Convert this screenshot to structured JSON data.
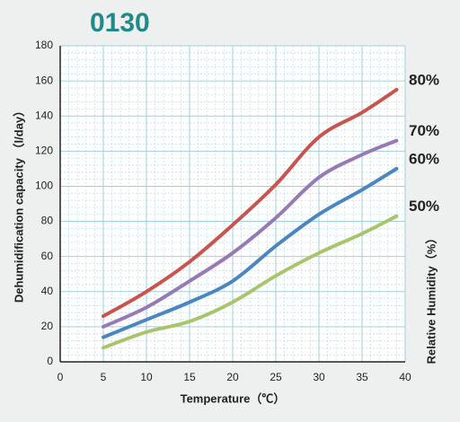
{
  "chart_data": {
    "type": "line",
    "title": "0130",
    "x_label": "Temperature（℃）",
    "y_label": "Dehumidification capacity （l/day）",
    "legend_title": "Relative Humidity（%）",
    "x": [
      5,
      10,
      15,
      20,
      25,
      30,
      35,
      39
    ],
    "series": [
      {
        "name": "80%",
        "color": "#c9544e",
        "values": [
          26,
          40,
          57,
          78,
          101,
          128,
          142,
          155
        ]
      },
      {
        "name": "70%",
        "color": "#9779b5",
        "values": [
          20,
          31,
          46,
          62,
          82,
          105,
          118,
          126
        ]
      },
      {
        "name": "60%",
        "color": "#4a86c0",
        "values": [
          14,
          24,
          34,
          46,
          66,
          84,
          98,
          110
        ]
      },
      {
        "name": "50%",
        "color": "#a9c46a",
        "values": [
          8,
          17,
          23,
          34,
          49,
          62,
          73,
          83
        ]
      }
    ],
    "xlim": [
      0,
      40
    ],
    "xticks": [
      0,
      5,
      10,
      15,
      20,
      25,
      30,
      35,
      40
    ],
    "ylim": [
      0,
      180
    ],
    "yticks": [
      0,
      20,
      40,
      60,
      80,
      100,
      120,
      140,
      160,
      180
    ],
    "grid": true
  }
}
